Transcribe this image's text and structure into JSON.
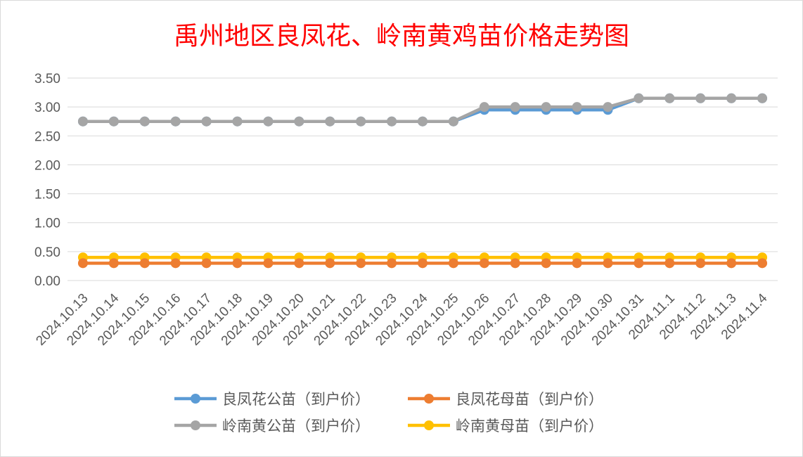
{
  "chart_data": {
    "type": "line",
    "title": "禹州地区良凤花、岭南黄鸡苗价格走势图",
    "xlabel": "",
    "ylabel": "",
    "ylim": [
      0,
      3.5
    ],
    "yticks": [
      "0.00",
      "0.50",
      "1.00",
      "1.50",
      "2.00",
      "2.50",
      "3.00",
      "3.50"
    ],
    "grid": true,
    "legend_position": "bottom",
    "categories": [
      "2024.10.13",
      "2024.10.14",
      "2024.10.15",
      "2024.10.16",
      "2024.10.17",
      "2024.10.18",
      "2024.10.19",
      "2024.10.20",
      "2024.10.21",
      "2024.10.22",
      "2024.10.23",
      "2024.10.24",
      "2024.10.25",
      "2024.10.26",
      "2024.10.27",
      "2024.10.28",
      "2024.10.29",
      "2024.10.30",
      "2024.10.31",
      "2024.11.1",
      "2024.11.2",
      "2024.11.3",
      "2024.11.4"
    ],
    "series": [
      {
        "name": "良凤花公苗（到户价）",
        "color": "#5b9bd5",
        "values": [
          2.75,
          2.75,
          2.75,
          2.75,
          2.75,
          2.75,
          2.75,
          2.75,
          2.75,
          2.75,
          2.75,
          2.75,
          2.75,
          2.95,
          2.95,
          2.95,
          2.95,
          2.95,
          3.15,
          3.15,
          3.15,
          3.15,
          3.15
        ]
      },
      {
        "name": "良凤花母苗（到户价）",
        "color": "#ed7d31",
        "values": [
          0.3,
          0.3,
          0.3,
          0.3,
          0.3,
          0.3,
          0.3,
          0.3,
          0.3,
          0.3,
          0.3,
          0.3,
          0.3,
          0.3,
          0.3,
          0.3,
          0.3,
          0.3,
          0.3,
          0.3,
          0.3,
          0.3,
          0.3
        ]
      },
      {
        "name": "岭南黄公苗（到户价）",
        "color": "#a5a5a5",
        "values": [
          2.75,
          2.75,
          2.75,
          2.75,
          2.75,
          2.75,
          2.75,
          2.75,
          2.75,
          2.75,
          2.75,
          2.75,
          2.75,
          3.0,
          3.0,
          3.0,
          3.0,
          3.0,
          3.15,
          3.15,
          3.15,
          3.15,
          3.15
        ]
      },
      {
        "name": "岭南黄母苗（到户价）",
        "color": "#ffc000",
        "values": [
          0.4,
          0.4,
          0.4,
          0.4,
          0.4,
          0.4,
          0.4,
          0.4,
          0.4,
          0.4,
          0.4,
          0.4,
          0.4,
          0.4,
          0.4,
          0.4,
          0.4,
          0.4,
          0.4,
          0.4,
          0.4,
          0.4,
          0.4
        ]
      }
    ],
    "draw_order": [
      3,
      1,
      0,
      2
    ]
  }
}
